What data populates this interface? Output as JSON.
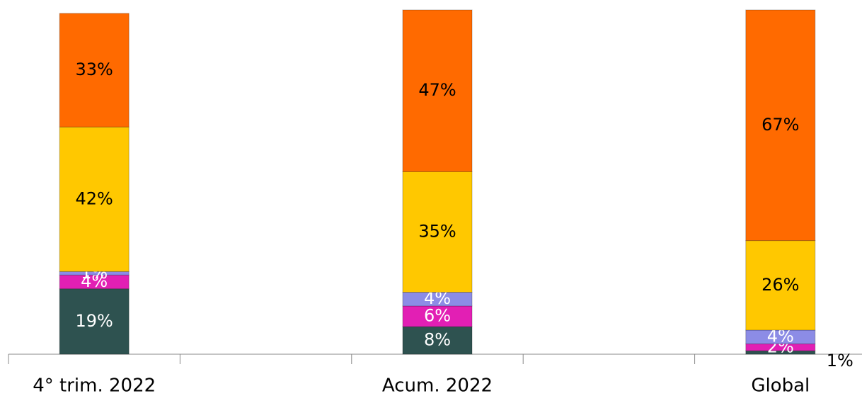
{
  "chart_data": {
    "type": "stacked_bar",
    "categories": [
      "4° trim. 2022",
      null,
      "Acum. 2022",
      null,
      "Global"
    ],
    "series": [
      {
        "color": "#2e5250",
        "values": [
          19,
          null,
          8,
          null,
          1
        ],
        "value_labels": [
          "19%",
          null,
          "8%",
          null,
          "1%"
        ]
      },
      {
        "color": "#e21fb4",
        "values": [
          4,
          null,
          6,
          null,
          2
        ],
        "value_labels": [
          "4%",
          null,
          "6%",
          null,
          "2%"
        ]
      },
      {
        "color": "#8c8ce6",
        "values": [
          1,
          null,
          4,
          null,
          4
        ],
        "value_labels": [
          "1%",
          null,
          "4%",
          null,
          "4%"
        ]
      },
      {
        "color": "#ffc800",
        "values": [
          42,
          null,
          35,
          null,
          26
        ],
        "value_labels": [
          "42%",
          null,
          "35%",
          null,
          "26%"
        ]
      },
      {
        "color": "#ff6a00",
        "values": [
          33,
          null,
          47,
          null,
          67
        ],
        "value_labels": [
          "33%",
          null,
          "47%",
          null,
          "67%"
        ]
      }
    ],
    "ylim": [
      0,
      100
    ]
  }
}
